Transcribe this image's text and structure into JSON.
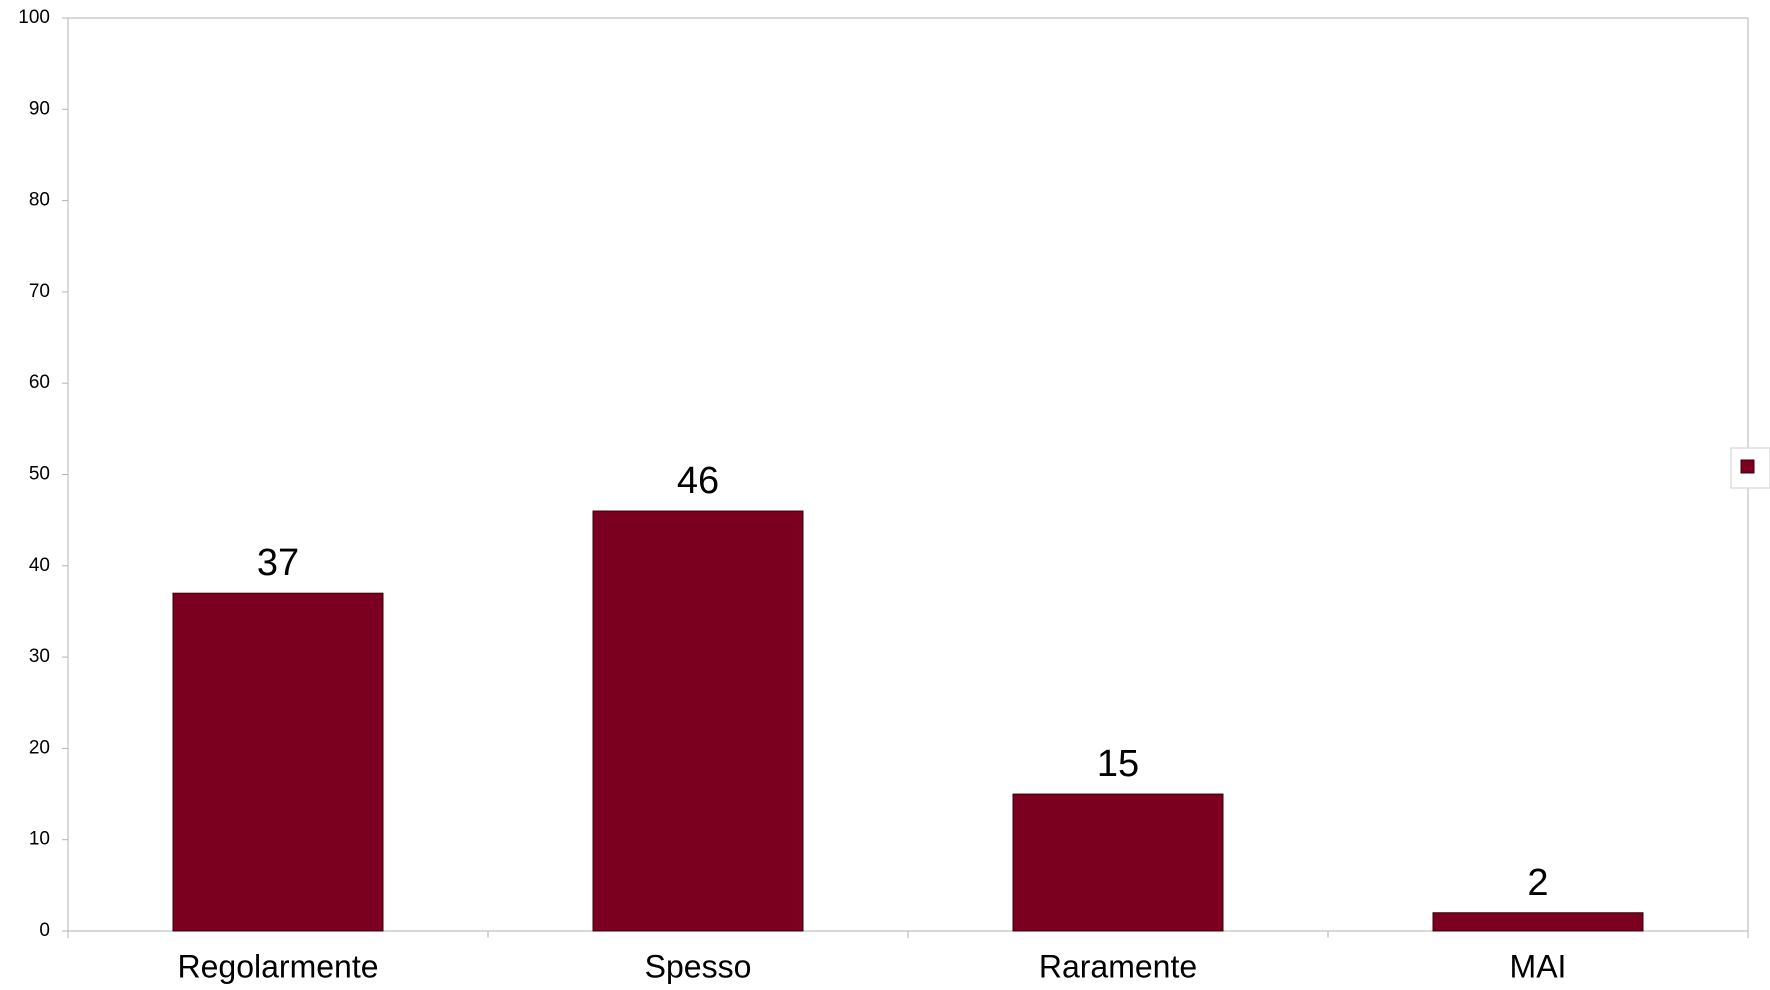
{
  "chart_data": {
    "type": "bar",
    "categories": [
      "Regolarmente",
      "Spesso",
      "Raramente",
      "MAI"
    ],
    "series": [
      {
        "values": [
          37,
          46,
          15,
          2
        ]
      }
    ],
    "data_labels": [
      "37",
      "46",
      "15",
      "2"
    ],
    "ylim": [
      0,
      100
    ],
    "yticks": [
      0,
      10,
      20,
      30,
      40,
      50,
      60,
      70,
      80,
      90,
      100
    ],
    "ytick_labels": [
      "0",
      "10",
      "20",
      "30",
      "40",
      "50",
      "60",
      "70",
      "80",
      "90",
      "100"
    ],
    "grid": false,
    "legend": {
      "placement": "right",
      "entries": [
        ""
      ]
    },
    "colors": {
      "bar": "#7b0020",
      "bar_outline": "#3a000d",
      "axis": "#b3b3b3",
      "text": "#000000",
      "legend_border": "#cfcfcf"
    }
  }
}
